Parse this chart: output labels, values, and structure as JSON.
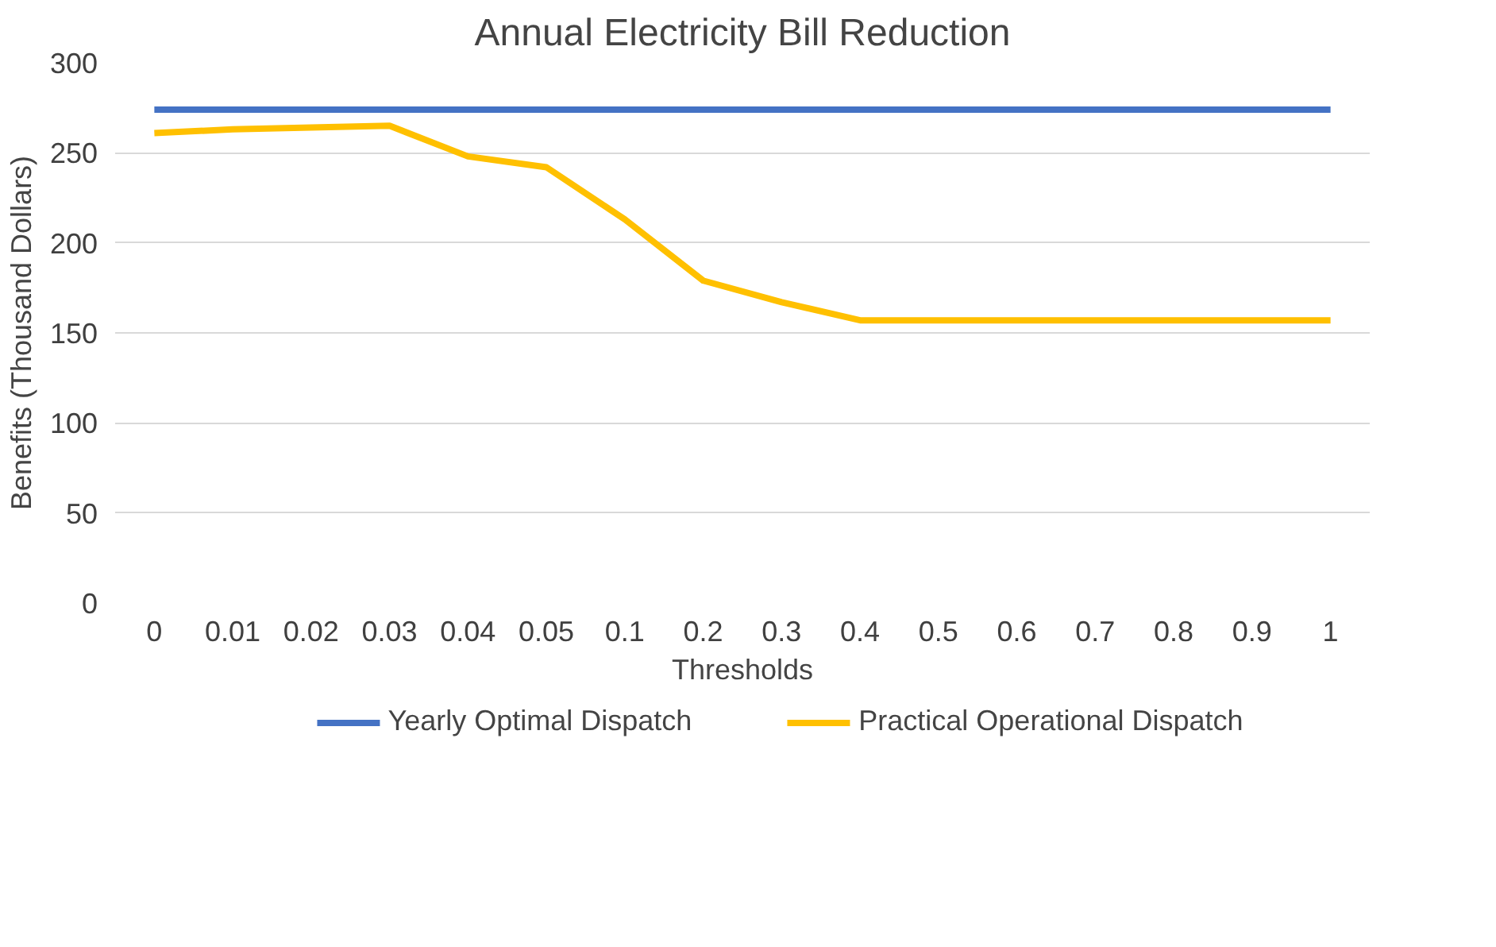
{
  "chart_data": {
    "type": "line",
    "title": "Annual Electricity Bill Reduction",
    "xlabel": "Thresholds",
    "ylabel": "Benefits (Thousand Dollars)",
    "categories": [
      "0",
      "0.01",
      "0.02",
      "0.03",
      "0.04",
      "0.05",
      "0.1",
      "0.2",
      "0.3",
      "0.4",
      "0.5",
      "0.6",
      "0.7",
      "0.8",
      "0.9",
      "1"
    ],
    "series": [
      {
        "name": "Yearly Optimal Dispatch",
        "color": "#4472c4",
        "values": [
          274,
          274,
          274,
          274,
          274,
          274,
          274,
          274,
          274,
          274,
          274,
          274,
          274,
          274,
          274,
          274
        ]
      },
      {
        "name": "Practical Operational Dispatch",
        "color": "#ffc000",
        "values": [
          261,
          263,
          264,
          265,
          248,
          242,
          213,
          179,
          167,
          157,
          157,
          157,
          157,
          157,
          157,
          157
        ]
      }
    ],
    "ylim": [
      0,
      300
    ],
    "yticks": [
      0,
      50,
      100,
      150,
      200,
      250,
      300
    ],
    "grid": "y",
    "legend": "bottom",
    "marker": "none",
    "line_style": "solid"
  }
}
